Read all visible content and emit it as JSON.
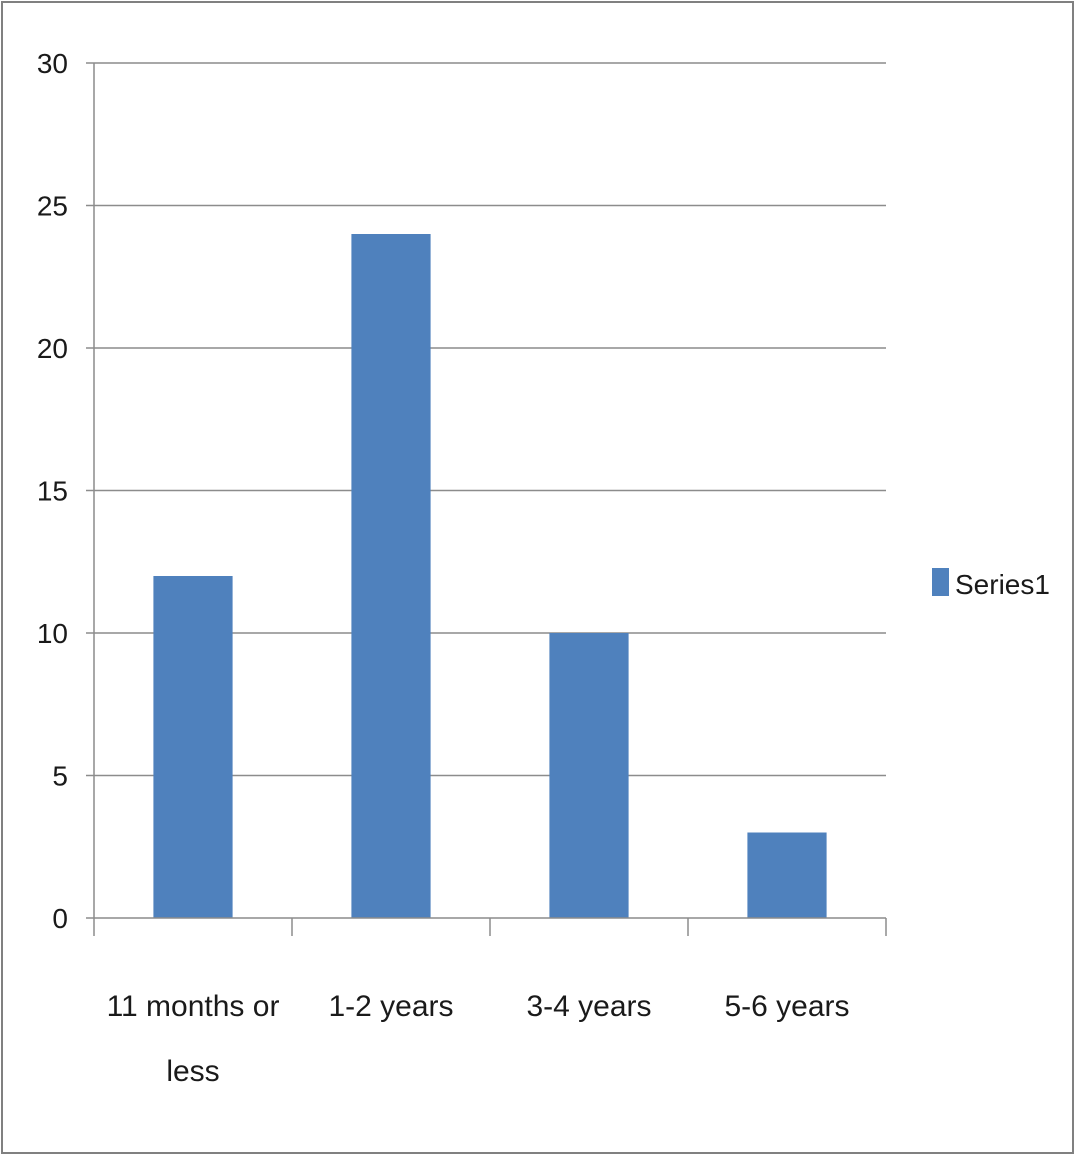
{
  "chart_data": {
    "type": "bar",
    "categories": [
      [
        "11 months or",
        "less"
      ],
      [
        "1-2 years"
      ],
      [
        "3-4 years"
      ],
      [
        "5-6 years"
      ]
    ],
    "series": [
      {
        "name": "Series1",
        "values": [
          12,
          24,
          10,
          3
        ],
        "color": "#4f81bd"
      }
    ],
    "yticks": [
      "0",
      "5",
      "10",
      "15",
      "20",
      "25",
      "30"
    ],
    "ylim": [
      0,
      30
    ],
    "grid": true,
    "legend": "right",
    "gridColor": "#8c8c8c",
    "axisColor": "#8c8c8c"
  }
}
